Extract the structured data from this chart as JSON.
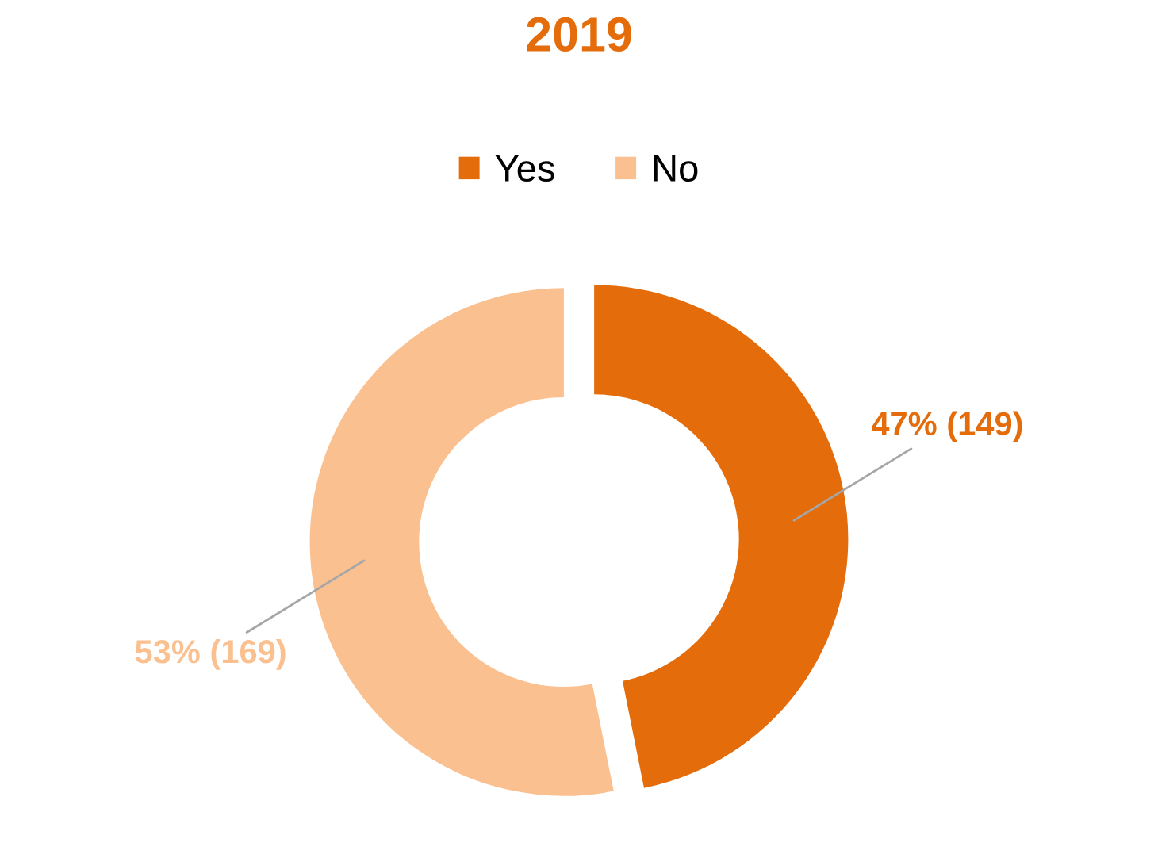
{
  "chart_data": {
    "type": "donut",
    "title": "2019",
    "categories": [
      "Yes",
      "No"
    ],
    "values": [
      149,
      169
    ],
    "colors": [
      "#e46c0a",
      "#fac090"
    ],
    "value_labels": [
      "47% (149)",
      "53% (169)"
    ],
    "legend": "top"
  }
}
